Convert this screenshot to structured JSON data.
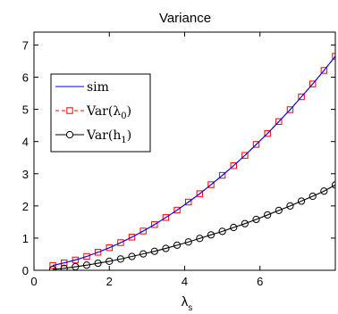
{
  "chart_data": {
    "type": "line",
    "title": "Variance",
    "xlabel": "λs",
    "xlabel_main": "λ",
    "xlabel_sub": "s",
    "ylabel": "",
    "xlim": [
      0,
      8
    ],
    "ylim": [
      0,
      7.4
    ],
    "x_ticks": [
      0,
      2,
      4,
      6
    ],
    "y_ticks": [
      0,
      1,
      2,
      3,
      4,
      5,
      6,
      7
    ],
    "x_tick_labels": [
      "0",
      "2",
      "4",
      "6"
    ],
    "y_tick_labels": [
      "0",
      "1",
      "2",
      "3",
      "4",
      "5",
      "6",
      "7"
    ],
    "grid": false,
    "legend_position": "upper-left",
    "series": [
      {
        "name": "sim",
        "legend_main": "sim",
        "legend_sub": "",
        "color": "#0000ff",
        "marker": "none",
        "line": "solid",
        "x": [
          0.5,
          0.8,
          1.1,
          1.4,
          1.7,
          2.0,
          2.3,
          2.6,
          2.9,
          3.2,
          3.5,
          3.8,
          4.1,
          4.4,
          4.7,
          5.0,
          5.3,
          5.6,
          5.9,
          6.2,
          6.5,
          6.8,
          7.1,
          7.4,
          7.7,
          8.0
        ],
        "values": [
          0.15,
          0.23,
          0.32,
          0.43,
          0.56,
          0.7,
          0.86,
          1.03,
          1.22,
          1.42,
          1.64,
          1.87,
          2.12,
          2.38,
          2.66,
          2.95,
          3.25,
          3.57,
          3.91,
          4.25,
          4.62,
          4.99,
          5.39,
          5.79,
          6.21,
          6.65
        ]
      },
      {
        "name": "Var(λ0)",
        "legend_main": "Var(λ",
        "legend_sub": "0",
        "color": "#ff0000",
        "marker": "square",
        "line": "dashed",
        "x": [
          0.5,
          0.8,
          1.1,
          1.4,
          1.7,
          2.0,
          2.3,
          2.6,
          2.9,
          3.2,
          3.5,
          3.8,
          4.1,
          4.4,
          4.7,
          5.0,
          5.3,
          5.6,
          5.9,
          6.2,
          6.5,
          6.8,
          7.1,
          7.4,
          7.7,
          8.0
        ],
        "values": [
          0.15,
          0.23,
          0.32,
          0.43,
          0.56,
          0.7,
          0.86,
          1.03,
          1.22,
          1.42,
          1.64,
          1.87,
          2.12,
          2.38,
          2.66,
          2.95,
          3.25,
          3.57,
          3.91,
          4.25,
          4.62,
          4.99,
          5.39,
          5.79,
          6.21,
          6.65
        ]
      },
      {
        "name": "Var(h1)",
        "legend_main": "Var(h",
        "legend_sub": "1",
        "color": "#000000",
        "marker": "circle",
        "line": "solid",
        "x": [
          0.5,
          0.8,
          1.1,
          1.4,
          1.7,
          2.0,
          2.3,
          2.6,
          2.9,
          3.2,
          3.5,
          3.8,
          4.1,
          4.4,
          4.7,
          5.0,
          5.3,
          5.6,
          5.9,
          6.2,
          6.5,
          6.8,
          7.1,
          7.4,
          7.7,
          8.0
        ],
        "values": [
          0.03,
          0.06,
          0.11,
          0.16,
          0.22,
          0.28,
          0.35,
          0.43,
          0.51,
          0.59,
          0.68,
          0.78,
          0.88,
          0.99,
          1.1,
          1.21,
          1.33,
          1.45,
          1.58,
          1.72,
          1.86,
          2.0,
          2.15,
          2.3,
          2.46,
          2.65
        ]
      }
    ]
  }
}
